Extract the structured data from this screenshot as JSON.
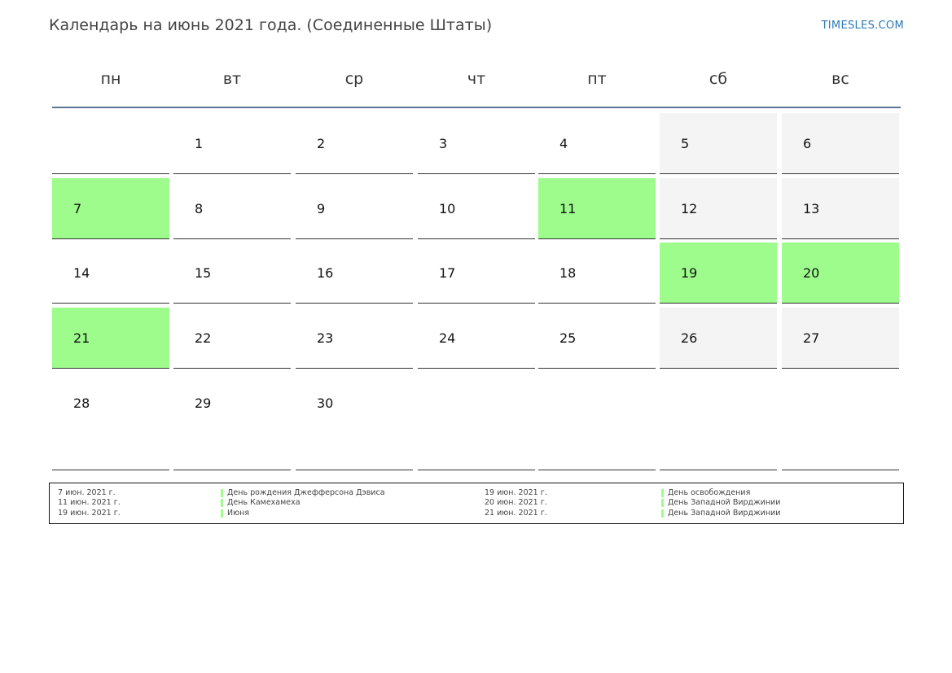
{
  "header": {
    "title": "Календарь на июнь 2021 года. (Соединенные Штаты)",
    "brand": "TIMESLES.COM"
  },
  "weekdays": [
    "пн",
    "вт",
    "ср",
    "чт",
    "пт",
    "сб",
    "вс"
  ],
  "colors": {
    "holiday": "#9dfc8c",
    "weekend": "#f4f4f4",
    "header_rule": "#5b7794",
    "brand": "#2e7ab8"
  },
  "weeks": [
    [
      {
        "day": "",
        "type": "normal"
      },
      {
        "day": "1",
        "type": "normal"
      },
      {
        "day": "2",
        "type": "normal"
      },
      {
        "day": "3",
        "type": "normal"
      },
      {
        "day": "4",
        "type": "normal"
      },
      {
        "day": "5",
        "type": "weekend"
      },
      {
        "day": "6",
        "type": "weekend"
      }
    ],
    [
      {
        "day": "7",
        "type": "holiday"
      },
      {
        "day": "8",
        "type": "normal"
      },
      {
        "day": "9",
        "type": "normal"
      },
      {
        "day": "10",
        "type": "normal"
      },
      {
        "day": "11",
        "type": "holiday"
      },
      {
        "day": "12",
        "type": "weekend"
      },
      {
        "day": "13",
        "type": "weekend"
      }
    ],
    [
      {
        "day": "14",
        "type": "normal"
      },
      {
        "day": "15",
        "type": "normal"
      },
      {
        "day": "16",
        "type": "normal"
      },
      {
        "day": "17",
        "type": "normal"
      },
      {
        "day": "18",
        "type": "normal"
      },
      {
        "day": "19",
        "type": "holiday"
      },
      {
        "day": "20",
        "type": "holiday"
      }
    ],
    [
      {
        "day": "21",
        "type": "holiday"
      },
      {
        "day": "22",
        "type": "normal"
      },
      {
        "day": "23",
        "type": "normal"
      },
      {
        "day": "24",
        "type": "normal"
      },
      {
        "day": "25",
        "type": "normal"
      },
      {
        "day": "26",
        "type": "weekend"
      },
      {
        "day": "27",
        "type": "weekend"
      }
    ],
    [
      {
        "day": "28",
        "type": "normal"
      },
      {
        "day": "29",
        "type": "normal"
      },
      {
        "day": "30",
        "type": "normal"
      },
      {
        "day": "",
        "type": "normal"
      },
      {
        "day": "",
        "type": "normal"
      },
      {
        "day": "",
        "type": "normal"
      },
      {
        "day": "",
        "type": "normal"
      }
    ]
  ],
  "legend": [
    {
      "date": "7 июн. 2021 г.",
      "name": "День рождения Джефферсона Дэвиса"
    },
    {
      "date": "11 июн. 2021 г.",
      "name": "День Камехамеха"
    },
    {
      "date": "19 июн. 2021 г.",
      "name": "Июня"
    },
    {
      "date": "19 июн. 2021 г.",
      "name": "День освобождения"
    },
    {
      "date": "20 июн. 2021 г.",
      "name": "День Западной Вирджинии"
    },
    {
      "date": "21 июн. 2021 г.",
      "name": "День Западной Вирджинии"
    }
  ]
}
